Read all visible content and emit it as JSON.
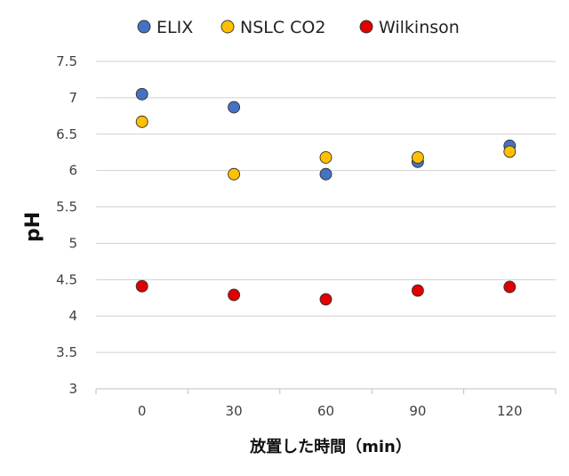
{
  "chart_data": {
    "type": "scatter",
    "title": "",
    "xlabel": "放置した時間（min）",
    "ylabel": "pH",
    "x_categories": [
      "0",
      "30",
      "60",
      "90",
      "120"
    ],
    "yticks": [
      "3",
      "3.5",
      "4",
      "4.5",
      "5",
      "5.5",
      "6",
      "6.5",
      "7",
      "7.5"
    ],
    "ylim": [
      3,
      7.5
    ],
    "grid": true,
    "legend_position": "top",
    "series": [
      {
        "name": "ELIX",
        "color": "#4472C4",
        "values": [
          7.05,
          6.87,
          5.95,
          6.12,
          6.34
        ]
      },
      {
        "name": "NSLC CO2",
        "color": "#FFC000",
        "values": [
          6.67,
          5.95,
          6.18,
          6.18,
          6.26
        ]
      },
      {
        "name": "Wilkinson",
        "color": "#E00000",
        "values": [
          4.41,
          4.29,
          4.23,
          4.35,
          4.4
        ]
      }
    ]
  }
}
